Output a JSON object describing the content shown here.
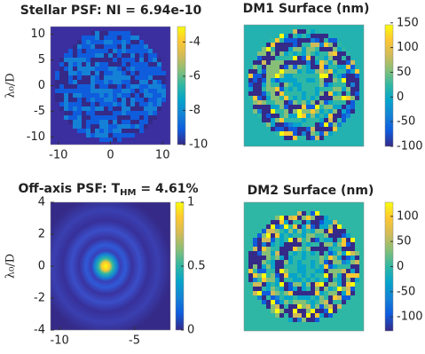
{
  "chart_data": [
    {
      "type": "heatmap",
      "title": "Stellar PSF: NI = 6.94e-10",
      "ylabel": "λ₀/D",
      "xlim": [
        -11.5,
        11.5
      ],
      "xticks": [
        -10,
        0,
        10
      ],
      "ylim": [
        -11.5,
        11.5
      ],
      "yticks": [
        10,
        5,
        0,
        -5,
        -10
      ],
      "clim": [
        -10,
        -3.1
      ],
      "cticks": [
        -4,
        -6,
        -8,
        -10
      ],
      "colormap": "parula"
    },
    {
      "type": "heatmap",
      "title": "DM1 Surface (nm)",
      "clim": [
        -100,
        146
      ],
      "cticks": [
        150,
        100,
        50,
        0,
        -50,
        -100
      ],
      "colormap": "parula"
    },
    {
      "type": "heatmap",
      "title": "Off-axis PSF: T",
      "title_subscript": "HM",
      "title_suffix": " =   4.61%",
      "ylabel": "λ₀/D",
      "xlim": [
        -10.6,
        -2.6
      ],
      "xticks": [
        -10,
        -5
      ],
      "ylim": [
        -4,
        4
      ],
      "yticks": [
        4,
        2,
        0,
        -2,
        -4
      ],
      "clim": [
        0,
        1
      ],
      "cticks": [
        1,
        0.5,
        0
      ],
      "colormap": "parula"
    },
    {
      "type": "heatmap",
      "title": "DM2 Surface (nm)",
      "clim": [
        -128,
        128
      ],
      "cticks": [
        100,
        50,
        0,
        -50,
        -100
      ],
      "colormap": "parula"
    }
  ]
}
